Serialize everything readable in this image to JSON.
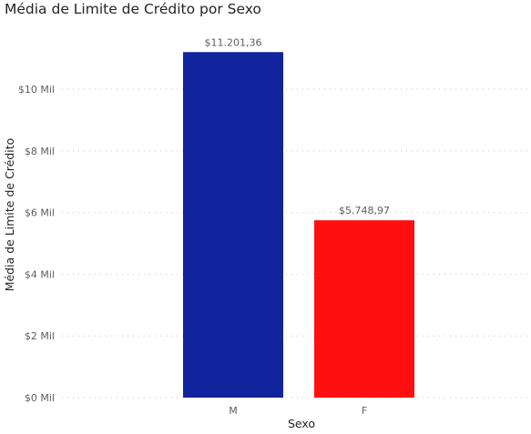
{
  "chart_data": {
    "type": "bar",
    "title": "Média de Limite de Crédito por Sexo",
    "xlabel": "Sexo",
    "ylabel": "Média de Limite de Crédito",
    "categories": [
      "M",
      "F"
    ],
    "values": [
      11201.36,
      5748.97
    ],
    "data_labels": [
      "$11.201,36",
      "$5.748,97"
    ],
    "ylim": [
      0,
      12000
    ],
    "y_ticks": [
      0,
      2000,
      4000,
      6000,
      8000,
      10000
    ],
    "y_tick_labels": [
      "$0 Mil",
      "$2 Mil",
      "$4 Mil",
      "$6 Mil",
      "$8 Mil",
      "$10 Mil"
    ],
    "grid": true,
    "colors": [
      "#12239e",
      "#ff0f0f"
    ]
  }
}
